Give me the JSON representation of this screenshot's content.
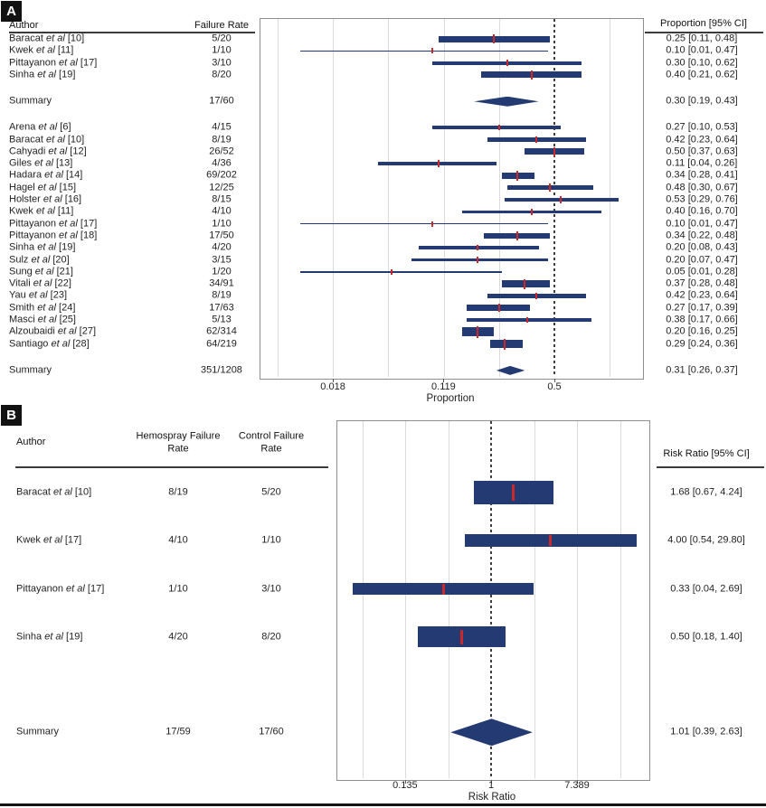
{
  "colors": {
    "navy": "#233a72",
    "red": "#c9282d"
  },
  "chart_data": [
    {
      "type": "forest",
      "panel": "A",
      "columns": {
        "author": "Author",
        "rate": "Failure Rate",
        "effect": "Proportion [95% CI]"
      },
      "xlabel": "Proportion",
      "x_scale": "logit",
      "x_ticks": [
        "0.018",
        "0.119",
        "0.5"
      ],
      "reference_line": 0.5,
      "rows": [
        {
          "type": "study",
          "author": "Baracat",
          "etal": "et al",
          "ref": "[10]",
          "rate": "5/20",
          "estimate": 0.25,
          "ci_low": 0.11,
          "ci_high": 0.48,
          "label": "0.25 [0.11, 0.48]",
          "size": 7
        },
        {
          "type": "study",
          "author": "Kwek",
          "etal": "et al",
          "ref": "[11]",
          "rate": "1/10",
          "estimate": 0.1,
          "ci_low": 0.01,
          "ci_high": 0.47,
          "label": "0.10 [0.01, 0.47]",
          "size": 1.5
        },
        {
          "type": "study",
          "author": "Pittayanon",
          "etal": "et al",
          "ref": "[17]",
          "rate": "3/10",
          "estimate": 0.3,
          "ci_low": 0.1,
          "ci_high": 0.62,
          "label": "0.30 [0.10, 0.62]",
          "size": 4
        },
        {
          "type": "study",
          "author": "Sinha",
          "etal": "et al",
          "ref": "[19]",
          "rate": "8/20",
          "estimate": 0.4,
          "ci_low": 0.21,
          "ci_high": 0.62,
          "label": "0.40 [0.21, 0.62]",
          "size": 7
        },
        {
          "type": "summary",
          "author": "Summary",
          "rate": "17/60",
          "estimate": 0.3,
          "ci_low": 0.19,
          "ci_high": 0.43,
          "label": "0.30 [0.19, 0.43]",
          "size": 11
        },
        {
          "type": "study",
          "author": "Arena",
          "etal": "et al",
          "ref": "[6]",
          "rate": "4/15",
          "estimate": 0.27,
          "ci_low": 0.1,
          "ci_high": 0.53,
          "label": "0.27 [0.10, 0.53]",
          "size": 3.5
        },
        {
          "type": "study",
          "author": "Baracat",
          "etal": "et al",
          "ref": "[10]",
          "rate": "8/19",
          "estimate": 0.42,
          "ci_low": 0.23,
          "ci_high": 0.64,
          "label": "0.42 [0.23, 0.64]",
          "size": 4.5
        },
        {
          "type": "study",
          "author": "Cahyadi",
          "etal": "et al",
          "ref": "[12]",
          "rate": "26/52",
          "estimate": 0.5,
          "ci_low": 0.37,
          "ci_high": 0.63,
          "label": "0.50 [0.37, 0.63]",
          "size": 7
        },
        {
          "type": "study",
          "author": "Giles",
          "etal": "et al",
          "ref": "[13]",
          "rate": "4/36",
          "estimate": 0.11,
          "ci_low": 0.04,
          "ci_high": 0.26,
          "label": "0.11 [0.04, 0.26]",
          "size": 4.5
        },
        {
          "type": "study",
          "author": "Hadara",
          "etal": "et al",
          "ref": "[14]",
          "rate": "69/202",
          "estimate": 0.34,
          "ci_low": 0.28,
          "ci_high": 0.41,
          "label": "0.34 [0.28, 0.41]",
          "size": 7.5
        },
        {
          "type": "study",
          "author": "Hagel",
          "etal": "et al",
          "ref": "[15]",
          "rate": "12/25",
          "estimate": 0.48,
          "ci_low": 0.3,
          "ci_high": 0.67,
          "label": "0.48 [0.30, 0.67]",
          "size": 5.5
        },
        {
          "type": "study",
          "author": "Holster",
          "etal": "et al",
          "ref": "[16]",
          "rate": "8/15",
          "estimate": 0.53,
          "ci_low": 0.29,
          "ci_high": 0.76,
          "label": "0.53 [0.29, 0.76]",
          "size": 4.5
        },
        {
          "type": "study",
          "author": "Kwek",
          "etal": "et al",
          "ref": "[11]",
          "rate": "4/10",
          "estimate": 0.4,
          "ci_low": 0.16,
          "ci_high": 0.7,
          "label": "0.40 [0.16, 0.70]",
          "size": 3.5
        },
        {
          "type": "study",
          "author": "Pittayanon",
          "etal": "et al",
          "ref": "[17]",
          "rate": "1/10",
          "estimate": 0.1,
          "ci_low": 0.01,
          "ci_high": 0.47,
          "label": "0.10 [0.01, 0.47]",
          "size": 1.5
        },
        {
          "type": "study",
          "author": "Pittayanon",
          "etal": "et al",
          "ref": "[18]",
          "rate": "17/50",
          "estimate": 0.34,
          "ci_low": 0.22,
          "ci_high": 0.48,
          "label": "0.34 [0.22, 0.48]",
          "size": 6.5
        },
        {
          "type": "study",
          "author": "Sinha",
          "etal": "et al",
          "ref": "[19]",
          "rate": "4/20",
          "estimate": 0.2,
          "ci_low": 0.08,
          "ci_high": 0.43,
          "label": "0.20 [0.08, 0.43]",
          "size": 3.5
        },
        {
          "type": "study",
          "author": "Sulz",
          "etal": "et al",
          "ref": "[20]",
          "rate": "3/15",
          "estimate": 0.2,
          "ci_low": 0.07,
          "ci_high": 0.47,
          "label": "0.20 [0.07, 0.47]",
          "size": 3.5
        },
        {
          "type": "study",
          "author": "Sung",
          "etal": "et al",
          "ref": "[21]",
          "rate": "1/20",
          "estimate": 0.05,
          "ci_low": 0.01,
          "ci_high": 0.28,
          "label": "0.05 [0.01, 0.28]",
          "size": 1.5
        },
        {
          "type": "study",
          "author": "Vitali",
          "etal": "et al",
          "ref": "[22]",
          "rate": "34/91",
          "estimate": 0.37,
          "ci_low": 0.28,
          "ci_high": 0.48,
          "label": "0.37 [0.28, 0.48]",
          "size": 8
        },
        {
          "type": "study",
          "author": "Yau",
          "etal": "et al",
          "ref": "[23]",
          "rate": "8/19",
          "estimate": 0.42,
          "ci_low": 0.23,
          "ci_high": 0.64,
          "label": "0.42 [0.23, 0.64]",
          "size": 4.5
        },
        {
          "type": "study",
          "author": "Smith",
          "etal": "et al",
          "ref": "[24]",
          "rate": "17/63",
          "estimate": 0.27,
          "ci_low": 0.17,
          "ci_high": 0.39,
          "label": "0.27 [0.17, 0.39]",
          "size": 6.5
        },
        {
          "type": "study",
          "author": "Masci",
          "etal": "et al",
          "ref": "[25]",
          "rate": "5/13",
          "estimate": 0.38,
          "ci_low": 0.17,
          "ci_high": 0.66,
          "label": "0.38 [0.17, 0.66]",
          "size": 3.5
        },
        {
          "type": "study",
          "author": "Alzoubaidi",
          "etal": "et al",
          "ref": "[27]",
          "rate": "62/314",
          "estimate": 0.2,
          "ci_low": 0.16,
          "ci_high": 0.25,
          "label": "0.20 [0.16, 0.25]",
          "size": 10
        },
        {
          "type": "study",
          "author": "Santiago",
          "etal": "et al",
          "ref": "[28]",
          "rate": "64/219",
          "estimate": 0.29,
          "ci_low": 0.24,
          "ci_high": 0.36,
          "label": "0.29 [0.24, 0.36]",
          "size": 9
        },
        {
          "type": "summary",
          "author": "Summary",
          "rate": "351/1208",
          "estimate": 0.31,
          "ci_low": 0.26,
          "ci_high": 0.37,
          "label": "0.31 [0.26, 0.37]",
          "size": 10
        }
      ]
    },
    {
      "type": "forest",
      "panel": "B",
      "columns": {
        "author": "Author",
        "hemospray": "Hemospray Failure\nRate",
        "control": "Control Failure\nRate",
        "effect": "Risk Ratio [95% CI]"
      },
      "xlabel": "Risk Ratio",
      "x_scale": "log",
      "x_ticks": [
        "0.135",
        "1",
        "7.389"
      ],
      "reference_line": 1,
      "rows": [
        {
          "type": "study",
          "author": "Baracat",
          "etal": "et al",
          "ref": "[10]",
          "hemospray": "8/19",
          "control": "5/20",
          "estimate": 1.68,
          "ci_low": 0.67,
          "ci_high": 4.24,
          "label": "1.68 [0.67, 4.24]",
          "size": 26
        },
        {
          "type": "study",
          "author": "Kwek",
          "etal": "et al",
          "ref": "[17]",
          "hemospray": "4/10",
          "control": "1/10",
          "estimate": 4.0,
          "ci_low": 0.54,
          "ci_high": 29.8,
          "label": "4.00 [0.54, 29.80]",
          "size": 14
        },
        {
          "type": "study",
          "author": "Pittayanon",
          "etal": "et al",
          "ref": "[17]",
          "hemospray": "1/10",
          "control": "3/10",
          "estimate": 0.33,
          "ci_low": 0.04,
          "ci_high": 2.69,
          "label": "0.33 [0.04, 2.69]",
          "size": 13
        },
        {
          "type": "study",
          "author": "Sinha",
          "etal": "et al",
          "ref": "[19]",
          "hemospray": "4/20",
          "control": "8/20",
          "estimate": 0.5,
          "ci_low": 0.18,
          "ci_high": 1.4,
          "label": "0.50 [0.18, 1.40]",
          "size": 23
        },
        {
          "type": "summary",
          "author": "Summary",
          "hemospray": "17/59",
          "control": "17/60",
          "estimate": 1.01,
          "ci_low": 0.39,
          "ci_high": 2.63,
          "label": "1.01 [0.39, 2.63]",
          "size": 30
        }
      ]
    }
  ]
}
